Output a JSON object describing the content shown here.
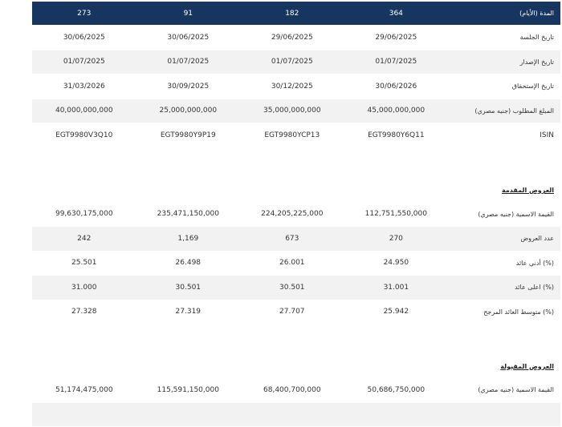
{
  "header": {
    "label": "المدة (الأيام)",
    "values": [
      "364",
      "182",
      "91",
      "273"
    ]
  },
  "general_rows": [
    {
      "label": "تاريخ الجلسة",
      "values": [
        "29/06/2025",
        "29/06/2025",
        "30/06/2025",
        "30/06/2025"
      ],
      "shaded": false
    },
    {
      "label": "تاريخ الإصدار",
      "values": [
        "01/07/2025",
        "01/07/2025",
        "01/07/2025",
        "01/07/2025"
      ],
      "shaded": true
    },
    {
      "label": "تاريخ الإستحقاق",
      "values": [
        "30/06/2026",
        "30/12/2025",
        "30/09/2025",
        "31/03/2026"
      ],
      "shaded": false
    },
    {
      "label": "المبلغ المطلوب (جنيه مصري)",
      "values": [
        "45,000,000,000",
        "35,000,000,000",
        "25,000,000,000",
        "40,000,000,000"
      ],
      "shaded": true
    },
    {
      "label": "ISIN",
      "values": [
        "EGT9980Y6Q11",
        "EGT9980YCP13",
        "EGT9980Y9P19",
        "EGT9980V3Q10"
      ],
      "shaded": false
    }
  ],
  "offers_submitted": {
    "title": "العروض المقدمة",
    "rows": [
      {
        "label": "القيمة الاسمية (جنيه مصري)",
        "values": [
          "112,751,550,000",
          "224,205,225,000",
          "235,471,150,000",
          "99,630,175,000"
        ],
        "shaded": false
      },
      {
        "label": "عدد العروض",
        "values": [
          "270",
          "673",
          "1,169",
          "242"
        ],
        "shaded": true
      },
      {
        "label": "أدني عائد (%)",
        "values": [
          "24.950",
          "26.001",
          "26.498",
          "25.501"
        ],
        "shaded": false
      },
      {
        "label": "اعلى عائد (%)",
        "values": [
          "31.001",
          "30.501",
          "30.501",
          "31.000"
        ],
        "shaded": true
      },
      {
        "label": "متوسط العائد المرجح (%)",
        "values": [
          "25.942",
          "27.707",
          "27.319",
          "27.328"
        ],
        "shaded": false
      }
    ]
  },
  "offers_accepted": {
    "title": "العروض المقبولة",
    "rows": [
      {
        "label": "القيمة الاسمية (جنيه مصري)",
        "values": [
          "50,686,750,000",
          "68,400,700,000",
          "115,591,150,000",
          "51,174,475,000"
        ],
        "shaded": false
      }
    ]
  }
}
